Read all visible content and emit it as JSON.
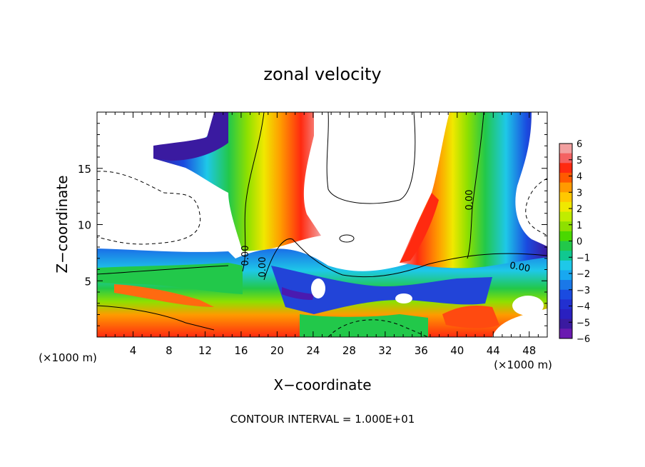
{
  "chart_data": {
    "type": "heatmap",
    "title": "zonal velocity",
    "xlabel": "X−coordinate",
    "ylabel": "Z−coordinate",
    "x_unit": "(×1000 m)",
    "xlim": [
      0,
      50
    ],
    "ylim": [
      0,
      20
    ],
    "x_ticks": [
      4,
      8,
      12,
      16,
      20,
      24,
      28,
      32,
      36,
      40,
      44,
      48
    ],
    "y_ticks": [
      5,
      10,
      15
    ],
    "colorbar": {
      "ticks": [
        6,
        5,
        4,
        3,
        2,
        1,
        0,
        -1,
        -2,
        -3,
        -4,
        -5,
        -6
      ],
      "tick_labels": [
        "6",
        "5",
        "4",
        "3",
        "2",
        "1",
        "0",
        "−1",
        "−2",
        "−3",
        "−4",
        "−5",
        "−6"
      ],
      "range": [
        -6,
        6
      ]
    },
    "contour_labels": [
      "0.00",
      "0.00",
      "0.00",
      "0.00"
    ],
    "footer": "CONTOUR INTERVAL = 1.000E+01",
    "grid": false
  }
}
